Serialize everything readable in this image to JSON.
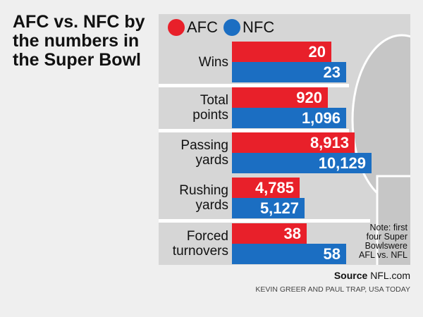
{
  "title": "AFC vs. NFC by the numbers in the Super Bowl",
  "chart_data": {
    "type": "bar",
    "orientation": "horizontal",
    "categories": [
      "Wins",
      "Total points",
      "Passing yards",
      "Rushing yards",
      "Forced turnovers"
    ],
    "series": [
      {
        "name": "AFC",
        "color": "#e8202a",
        "values": [
          20,
          920,
          8913,
          4785,
          38
        ],
        "labels": [
          "20",
          "920",
          "8,913",
          "4,785",
          "38"
        ]
      },
      {
        "name": "NFC",
        "color": "#1b6ec2",
        "values": [
          23,
          1096,
          10129,
          5127,
          58
        ],
        "labels": [
          "23",
          "1,096",
          "10,129",
          "5,127",
          "58"
        ]
      }
    ],
    "category_lines": [
      [
        "Wins"
      ],
      [
        "Total",
        "points"
      ],
      [
        "Passing",
        "yards"
      ],
      [
        "Rushing",
        "yards"
      ],
      [
        "Forced",
        "turnovers"
      ]
    ],
    "legend": "top-left"
  },
  "note": "Note: first four Super Bowlswere AFL vs. NFL",
  "source_label": "Source",
  "source_value": "NFL.com",
  "credit": "KEVIN GREER AND PAUL TRAP, USA TODAY"
}
